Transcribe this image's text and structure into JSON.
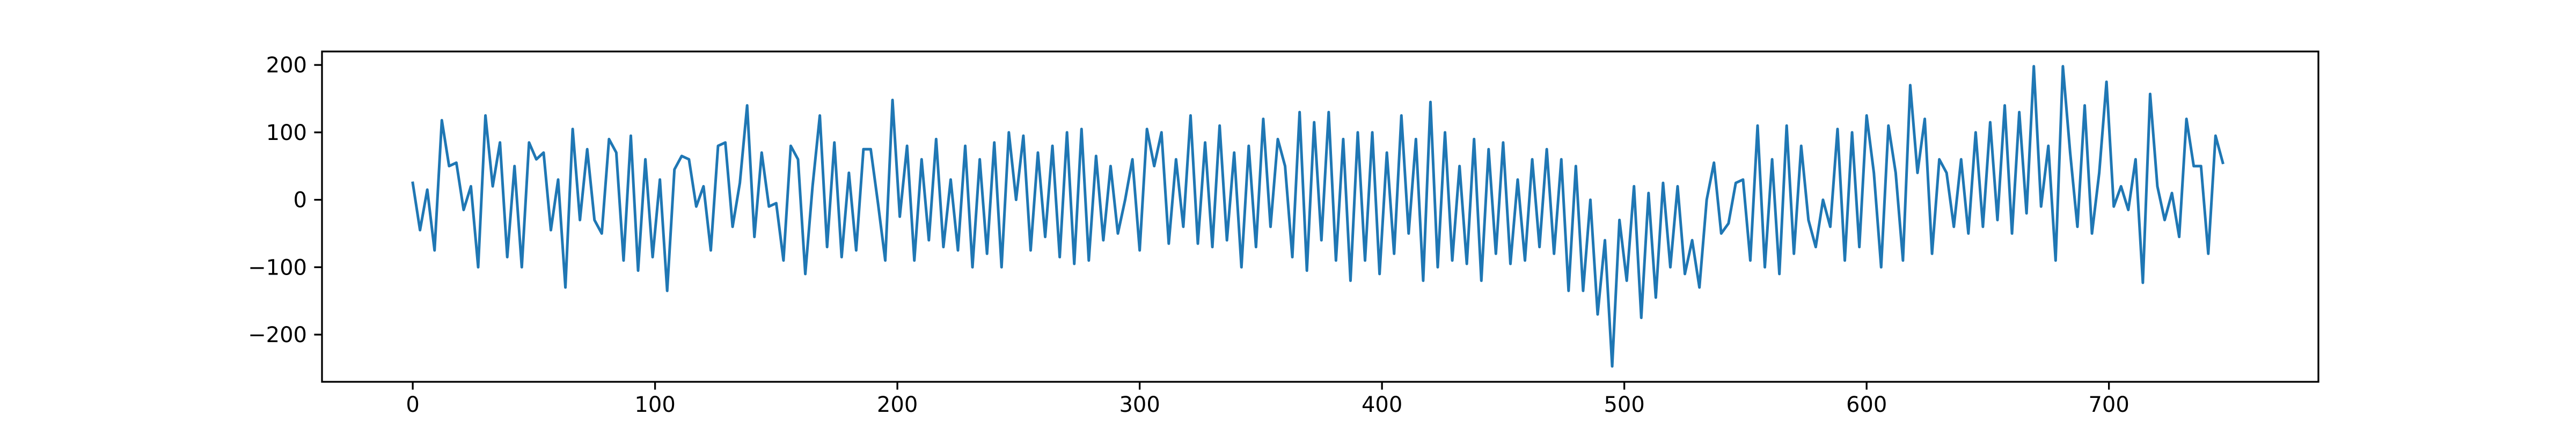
{
  "chart_data": {
    "type": "line",
    "color": "#1f77b4",
    "x": [
      0,
      3,
      6,
      9,
      12,
      15,
      18,
      21,
      24,
      27,
      30,
      33,
      36,
      39,
      42,
      45,
      48,
      51,
      54,
      57,
      60,
      63,
      66,
      69,
      72,
      75,
      78,
      81,
      84,
      87,
      90,
      93,
      96,
      99,
      102,
      105,
      108,
      111,
      114,
      117,
      120,
      123,
      126,
      129,
      132,
      135,
      138,
      141,
      144,
      147,
      150,
      153,
      156,
      159,
      162,
      165,
      168,
      171,
      174,
      177,
      180,
      183,
      186,
      189,
      192,
      195,
      198,
      201,
      204,
      207,
      210,
      213,
      216,
      219,
      222,
      225,
      228,
      231,
      234,
      237,
      240,
      243,
      246,
      249,
      252,
      255,
      258,
      261,
      264,
      267,
      270,
      273,
      276,
      279,
      282,
      285,
      288,
      291,
      294,
      297,
      300,
      303,
      306,
      309,
      312,
      315,
      318,
      321,
      324,
      327,
      330,
      333,
      336,
      339,
      342,
      345,
      348,
      351,
      354,
      357,
      360,
      363,
      366,
      369,
      372,
      375,
      378,
      381,
      384,
      387,
      390,
      393,
      396,
      399,
      402,
      405,
      408,
      411,
      414,
      417,
      420,
      423,
      426,
      429,
      432,
      435,
      438,
      441,
      444,
      447,
      450,
      453,
      456,
      459,
      462,
      465,
      468,
      471,
      474,
      477,
      480,
      483,
      486,
      489,
      492,
      495,
      498,
      501,
      504,
      507,
      510,
      513,
      516,
      519,
      522,
      525,
      528,
      531,
      534,
      537,
      540,
      543,
      546,
      549,
      552,
      555,
      558,
      561,
      564,
      567,
      570,
      573,
      576,
      579,
      582,
      585,
      588,
      591,
      594,
      597,
      600,
      603,
      606,
      609,
      612,
      615,
      618,
      621,
      624,
      627,
      630,
      633,
      636,
      639,
      642,
      645,
      648,
      651,
      654,
      657,
      660,
      663,
      666,
      669,
      672,
      675,
      678,
      681,
      684,
      687,
      690,
      693,
      696,
      699,
      702,
      705,
      708,
      711,
      714,
      717,
      720,
      723,
      726,
      729,
      732,
      735,
      738,
      741,
      744,
      747
    ],
    "values": [
      25,
      -45,
      15,
      -75,
      118,
      50,
      55,
      -15,
      20,
      -100,
      125,
      20,
      85,
      -85,
      50,
      -100,
      85,
      60,
      70,
      -45,
      30,
      -130,
      105,
      -30,
      75,
      -30,
      -50,
      90,
      70,
      -90,
      95,
      -105,
      60,
      -85,
      30,
      -135,
      45,
      65,
      60,
      -10,
      20,
      -75,
      80,
      85,
      -40,
      25,
      140,
      -55,
      70,
      -10,
      -5,
      -90,
      80,
      60,
      -110,
      20,
      125,
      -70,
      85,
      -85,
      40,
      -75,
      75,
      75,
      -5,
      -90,
      148,
      -25,
      80,
      -90,
      60,
      -60,
      90,
      -70,
      30,
      -75,
      80,
      -100,
      60,
      -80,
      85,
      -100,
      100,
      0,
      95,
      -75,
      70,
      -55,
      80,
      -85,
      100,
      -95,
      105,
      -90,
      65,
      -60,
      50,
      -50,
      0,
      60,
      -75,
      105,
      50,
      100,
      -65,
      60,
      -40,
      125,
      -65,
      85,
      -70,
      110,
      -60,
      70,
      -100,
      80,
      -70,
      120,
      -40,
      90,
      50,
      -85,
      130,
      -105,
      115,
      -60,
      130,
      -90,
      90,
      -120,
      100,
      -90,
      100,
      -110,
      70,
      -80,
      125,
      -50,
      90,
      -120,
      145,
      -100,
      100,
      -90,
      50,
      -95,
      90,
      -120,
      75,
      -80,
      85,
      -95,
      30,
      -90,
      60,
      -70,
      75,
      -80,
      60,
      -135,
      50,
      -135,
      0,
      -170,
      -60,
      -247,
      -30,
      -120,
      20,
      -175,
      10,
      -145,
      25,
      -100,
      20,
      -110,
      -60,
      -130,
      0,
      55,
      -50,
      -35,
      25,
      30,
      -90,
      110,
      -100,
      60,
      -110,
      110,
      -80,
      80,
      -30,
      -70,
      0,
      -40,
      105,
      -90,
      100,
      -70,
      125,
      40,
      -100,
      110,
      40,
      -90,
      170,
      40,
      120,
      -80,
      60,
      40,
      -40,
      60,
      -50,
      100,
      -40,
      115,
      -30,
      140,
      -50,
      130,
      -20,
      198,
      -10,
      80,
      -90,
      198,
      70,
      -40,
      140,
      -50,
      40,
      175,
      -10,
      20,
      -15,
      60,
      -123,
      157,
      20,
      -30,
      10,
      -55,
      120,
      50,
      50,
      -80,
      95,
      55
    ],
    "xlim": [
      -37.45,
      786.45
    ],
    "xticks": [
      0,
      100,
      200,
      300,
      400,
      500,
      600,
      700
    ],
    "ylim": [
      -270,
      220
    ],
    "yticks": [
      -200,
      -100,
      0,
      100,
      200
    ]
  }
}
